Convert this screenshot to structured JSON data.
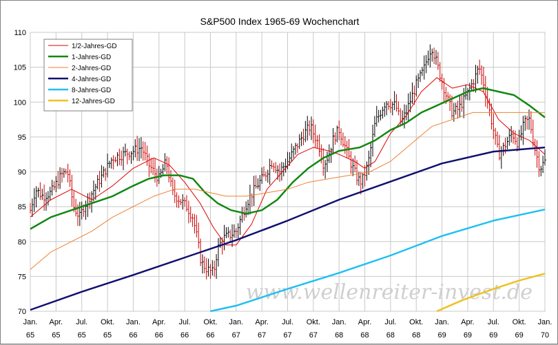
{
  "chart_data": {
    "type": "line",
    "title": "S&P500 Index 1965-69 Wochenchart",
    "watermark": "www.wellenreiter-invest.de",
    "ylim": [
      70,
      110
    ],
    "yticks": [
      70,
      75,
      80,
      85,
      90,
      95,
      100,
      105,
      110
    ],
    "xlim": [
      1965.0,
      1970.0
    ],
    "xticks": [
      {
        "x": 1965.0,
        "line1": "Jan.",
        "line2": "65"
      },
      {
        "x": 1965.25,
        "line1": "Apr.",
        "line2": "65"
      },
      {
        "x": 1965.5,
        "line1": "Jul.",
        "line2": "65"
      },
      {
        "x": 1965.75,
        "line1": "Okt.",
        "line2": "65"
      },
      {
        "x": 1966.0,
        "line1": "Jan.",
        "line2": "66"
      },
      {
        "x": 1966.25,
        "line1": "Apr.",
        "line2": "66"
      },
      {
        "x": 1966.5,
        "line1": "Jul.",
        "line2": "66"
      },
      {
        "x": 1966.75,
        "line1": "Okt.",
        "line2": "66"
      },
      {
        "x": 1967.0,
        "line1": "Jan.",
        "line2": "67"
      },
      {
        "x": 1967.25,
        "line1": "Apr.",
        "line2": "67"
      },
      {
        "x": 1967.5,
        "line1": "Jul.",
        "line2": "67"
      },
      {
        "x": 1967.75,
        "line1": "Okt.",
        "line2": "67"
      },
      {
        "x": 1968.0,
        "line1": "Jan.",
        "line2": "68"
      },
      {
        "x": 1968.25,
        "line1": "Apr.",
        "line2": "68"
      },
      {
        "x": 1968.5,
        "line1": "Jul.",
        "line2": "68"
      },
      {
        "x": 1968.75,
        "line1": "Okt.",
        "line2": "68"
      },
      {
        "x": 1969.0,
        "line1": "Jan.",
        "line2": "69"
      },
      {
        "x": 1969.25,
        "line1": "Apr.",
        "line2": "69"
      },
      {
        "x": 1969.5,
        "line1": "Jul.",
        "line2": "69"
      },
      {
        "x": 1969.75,
        "line1": "Okt.",
        "line2": "69"
      },
      {
        "x": 1970.0,
        "line1": "Jan.",
        "line2": "70"
      }
    ],
    "grid": true,
    "legend_position": "top-left",
    "price": {
      "name": "S&P500",
      "style": "weekly high-low bars",
      "color": "#000000",
      "down_color": "#cc0000",
      "close_anchors": [
        [
          1965.0,
          84.5
        ],
        [
          1965.05,
          87.5
        ],
        [
          1965.12,
          86.5
        ],
        [
          1965.2,
          87.0
        ],
        [
          1965.3,
          89.5
        ],
        [
          1965.36,
          90.2
        ],
        [
          1965.42,
          85.0
        ],
        [
          1965.48,
          83.5
        ],
        [
          1965.52,
          85.0
        ],
        [
          1965.6,
          87.0
        ],
        [
          1965.7,
          89.5
        ],
        [
          1965.8,
          92.0
        ],
        [
          1965.9,
          92.5
        ],
        [
          1966.0,
          93.0
        ],
        [
          1966.08,
          93.5
        ],
        [
          1966.15,
          91.0
        ],
        [
          1966.25,
          89.0
        ],
        [
          1966.32,
          91.5
        ],
        [
          1966.38,
          87.0
        ],
        [
          1966.45,
          86.0
        ],
        [
          1966.52,
          85.0
        ],
        [
          1966.58,
          83.5
        ],
        [
          1966.62,
          80.5
        ],
        [
          1966.66,
          77.0
        ],
        [
          1966.72,
          76.0
        ],
        [
          1966.78,
          75.5
        ],
        [
          1966.82,
          79.0
        ],
        [
          1966.88,
          80.5
        ],
        [
          1966.95,
          81.0
        ],
        [
          1967.0,
          81.5
        ],
        [
          1967.05,
          83.5
        ],
        [
          1967.1,
          85.5
        ],
        [
          1967.2,
          88.0
        ],
        [
          1967.28,
          89.5
        ],
        [
          1967.35,
          91.5
        ],
        [
          1967.42,
          90.0
        ],
        [
          1967.5,
          91.5
        ],
        [
          1967.58,
          93.5
        ],
        [
          1967.66,
          95.5
        ],
        [
          1967.72,
          96.5
        ],
        [
          1967.8,
          94.0
        ],
        [
          1967.85,
          91.0
        ],
        [
          1967.9,
          92.5
        ],
        [
          1967.95,
          95.0
        ],
        [
          1968.0,
          96.0
        ],
        [
          1968.05,
          94.0
        ],
        [
          1968.12,
          91.0
        ],
        [
          1968.18,
          89.0
        ],
        [
          1968.22,
          88.5
        ],
        [
          1968.28,
          91.0
        ],
        [
          1968.35,
          97.0
        ],
        [
          1968.45,
          100.0
        ],
        [
          1968.55,
          99.5
        ],
        [
          1968.6,
          97.0
        ],
        [
          1968.65,
          98.5
        ],
        [
          1968.75,
          102.5
        ],
        [
          1968.82,
          104.5
        ],
        [
          1968.86,
          106.5
        ],
        [
          1968.9,
          108.0
        ],
        [
          1968.94,
          106.0
        ],
        [
          1969.0,
          103.0
        ],
        [
          1969.05,
          100.5
        ],
        [
          1969.1,
          98.5
        ],
        [
          1969.16,
          99.0
        ],
        [
          1969.24,
          101.0
        ],
        [
          1969.32,
          103.5
        ],
        [
          1969.36,
          105.0
        ],
        [
          1969.4,
          103.0
        ],
        [
          1969.45,
          99.5
        ],
        [
          1969.5,
          96.0
        ],
        [
          1969.55,
          92.5
        ],
        [
          1969.6,
          93.5
        ],
        [
          1969.68,
          95.5
        ],
        [
          1969.74,
          94.0
        ],
        [
          1969.8,
          97.0
        ],
        [
          1969.85,
          97.5
        ],
        [
          1969.9,
          93.5
        ],
        [
          1969.95,
          90.5
        ],
        [
          1970.0,
          91.5
        ]
      ]
    },
    "series": [
      {
        "name": "1/2-Jahres-GD",
        "color": "#dd0000",
        "points": [
          [
            1965.0,
            83.5
          ],
          [
            1965.2,
            86.0
          ],
          [
            1965.4,
            87.5
          ],
          [
            1965.6,
            86.0
          ],
          [
            1965.8,
            88.0
          ],
          [
            1966.0,
            90.5
          ],
          [
            1966.2,
            92.0
          ],
          [
            1966.35,
            91.0
          ],
          [
            1966.5,
            88.5
          ],
          [
            1966.65,
            85.5
          ],
          [
            1966.78,
            82.0
          ],
          [
            1966.9,
            79.5
          ],
          [
            1967.0,
            79.5
          ],
          [
            1967.15,
            82.5
          ],
          [
            1967.3,
            87.5
          ],
          [
            1967.45,
            90.0
          ],
          [
            1967.6,
            92.5
          ],
          [
            1967.75,
            93.5
          ],
          [
            1967.9,
            93.0
          ],
          [
            1968.0,
            92.5
          ],
          [
            1968.15,
            91.5
          ],
          [
            1968.25,
            90.5
          ],
          [
            1968.35,
            91.5
          ],
          [
            1968.5,
            95.5
          ],
          [
            1968.65,
            98.0
          ],
          [
            1968.8,
            101.5
          ],
          [
            1968.95,
            103.5
          ],
          [
            1969.1,
            102.0
          ],
          [
            1969.25,
            102.5
          ],
          [
            1969.4,
            101.5
          ],
          [
            1969.55,
            97.5
          ],
          [
            1969.7,
            95.5
          ],
          [
            1969.85,
            94.5
          ],
          [
            1970.0,
            92.5
          ]
        ]
      },
      {
        "name": "1-Jahres-GD",
        "color": "#118811",
        "points": [
          [
            1965.0,
            81.8
          ],
          [
            1965.2,
            83.5
          ],
          [
            1965.4,
            84.5
          ],
          [
            1965.6,
            85.5
          ],
          [
            1965.8,
            86.5
          ],
          [
            1966.0,
            88.0
          ],
          [
            1966.15,
            89.0
          ],
          [
            1966.3,
            89.5
          ],
          [
            1966.45,
            89.5
          ],
          [
            1966.58,
            89.0
          ],
          [
            1966.7,
            87.0
          ],
          [
            1966.82,
            85.5
          ],
          [
            1966.95,
            84.5
          ],
          [
            1967.1,
            84.0
          ],
          [
            1967.25,
            84.5
          ],
          [
            1967.4,
            86.0
          ],
          [
            1967.55,
            88.5
          ],
          [
            1967.7,
            90.5
          ],
          [
            1967.85,
            92.0
          ],
          [
            1968.0,
            93.0
          ],
          [
            1968.2,
            93.5
          ],
          [
            1968.35,
            94.5
          ],
          [
            1968.5,
            96.0
          ],
          [
            1968.65,
            97.0
          ],
          [
            1968.8,
            98.5
          ],
          [
            1968.95,
            99.5
          ],
          [
            1969.1,
            100.5
          ],
          [
            1969.25,
            101.5
          ],
          [
            1969.4,
            102.0
          ],
          [
            1969.55,
            101.5
          ],
          [
            1969.7,
            101.0
          ],
          [
            1969.85,
            99.5
          ],
          [
            1970.0,
            97.8
          ]
        ]
      },
      {
        "name": "2-Jahres-GD",
        "color": "#f08030",
        "points": [
          [
            1965.0,
            76.0
          ],
          [
            1965.2,
            78.5
          ],
          [
            1965.4,
            80.0
          ],
          [
            1965.6,
            81.5
          ],
          [
            1965.8,
            83.5
          ],
          [
            1966.0,
            85.0
          ],
          [
            1966.2,
            86.5
          ],
          [
            1966.4,
            87.5
          ],
          [
            1966.6,
            87.5
          ],
          [
            1966.75,
            87.0
          ],
          [
            1966.9,
            86.5
          ],
          [
            1967.1,
            86.5
          ],
          [
            1967.3,
            87.0
          ],
          [
            1967.5,
            87.5
          ],
          [
            1967.7,
            88.5
          ],
          [
            1967.9,
            89.0
          ],
          [
            1968.1,
            89.5
          ],
          [
            1968.3,
            90.0
          ],
          [
            1968.5,
            91.5
          ],
          [
            1968.7,
            94.0
          ],
          [
            1968.9,
            96.5
          ],
          [
            1969.1,
            97.5
          ],
          [
            1969.3,
            98.5
          ],
          [
            1969.5,
            98.5
          ],
          [
            1969.7,
            98.5
          ],
          [
            1970.0,
            98.5
          ]
        ]
      },
      {
        "name": "4-Jahres-GD",
        "color": "#101070",
        "points": [
          [
            1965.0,
            70.2
          ],
          [
            1965.5,
            72.8
          ],
          [
            1966.0,
            75.2
          ],
          [
            1966.5,
            77.7
          ],
          [
            1967.0,
            80.2
          ],
          [
            1967.5,
            83.0
          ],
          [
            1968.0,
            86.0
          ],
          [
            1968.5,
            88.6
          ],
          [
            1969.0,
            91.2
          ],
          [
            1969.5,
            92.9
          ],
          [
            1970.0,
            93.5
          ]
        ]
      },
      {
        "name": "8-Jahres-GD",
        "color": "#20c0f0",
        "points": [
          [
            1966.75,
            70.0
          ],
          [
            1967.0,
            70.8
          ],
          [
            1967.5,
            73.2
          ],
          [
            1968.0,
            75.5
          ],
          [
            1968.5,
            78.0
          ],
          [
            1969.0,
            80.8
          ],
          [
            1969.5,
            83.0
          ],
          [
            1970.0,
            84.6
          ]
        ]
      },
      {
        "name": "12-Jahres-GD",
        "color": "#f0c020",
        "points": [
          [
            1968.95,
            70.0
          ],
          [
            1969.2,
            71.6
          ],
          [
            1969.5,
            73.2
          ],
          [
            1969.75,
            74.4
          ],
          [
            1970.0,
            75.4
          ]
        ]
      }
    ]
  }
}
